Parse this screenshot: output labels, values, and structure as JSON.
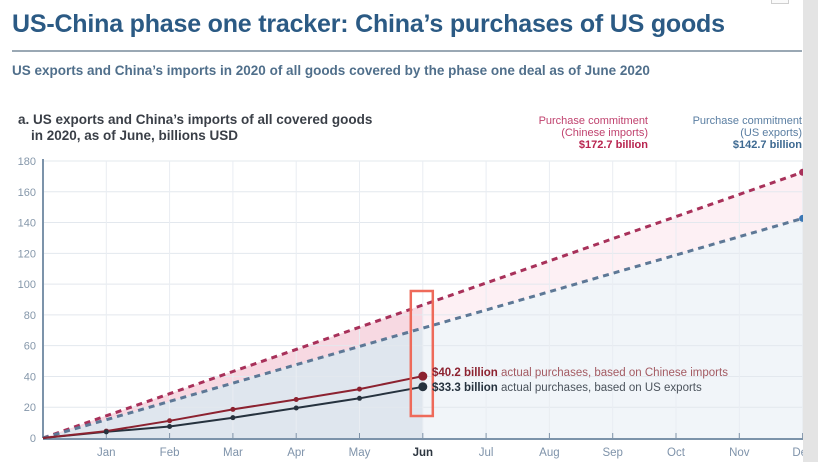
{
  "header": {
    "title": "US-China phase one tracker: China’s purchases of US goods",
    "subtitle": "US exports and China’s imports in 2020 of all goods covered by the phase one deal as of June 2020"
  },
  "panel": {
    "title_line1": "a. US exports and China’s imports of all covered goods",
    "title_line2": "in 2020, as of June, billions USD"
  },
  "legend": {
    "chinese": {
      "label_line1": "Purchase commitment",
      "label_line2": "(Chinese imports)",
      "value": "$172.7 billion"
    },
    "us": {
      "label_line1": "Purchase commitment",
      "label_line2": "(US exports)",
      "value": "$142.7 billion"
    }
  },
  "annotations": {
    "chinese": {
      "amount": "$40.2 billion",
      "text": " actual purchases, based on Chinese imports"
    },
    "us": {
      "amount": "$33.3 billion",
      "text": " actual purchases, based on US exports"
    }
  },
  "colors": {
    "title": "#2b5a84",
    "chinese": "#8c2230",
    "chinese_commitment": "#a8315a",
    "us": "#26323e",
    "us_commitment": "#5d7896",
    "highlight": "#ee6a5a"
  },
  "chart_data": {
    "type": "line",
    "title": "a. US exports and China’s imports of all covered goods in 2020, as of June, billions USD",
    "xlabel": "",
    "ylabel": "billions USD",
    "categories": [
      "Jan",
      "Feb",
      "Mar",
      "Apr",
      "May",
      "Jun",
      "Jul",
      "Aug",
      "Sep",
      "Oct",
      "Nov",
      "Dec"
    ],
    "yticks": [
      0,
      20,
      40,
      60,
      80,
      100,
      120,
      140,
      160,
      180
    ],
    "ylim": [
      0,
      180
    ],
    "grid": true,
    "highlight_category": "Jun",
    "series": [
      {
        "name": "Purchase commitment (Chinese imports)",
        "style": "dashed",
        "values": [
          14.4,
          28.8,
          43.2,
          57.6,
          72.0,
          86.4,
          100.7,
          115.1,
          129.5,
          143.9,
          158.3,
          172.7
        ]
      },
      {
        "name": "Purchase commitment (US exports)",
        "style": "dashed",
        "values": [
          11.9,
          23.8,
          35.7,
          47.6,
          59.5,
          71.4,
          83.2,
          95.1,
          107.0,
          118.9,
          130.8,
          142.7
        ]
      },
      {
        "name": "Actual purchases, based on Chinese imports",
        "style": "solid",
        "values": [
          4.5,
          11.2,
          18.6,
          25.0,
          31.8,
          40.2,
          null,
          null,
          null,
          null,
          null,
          null
        ]
      },
      {
        "name": "Actual purchases, based on US exports",
        "style": "solid",
        "values": [
          4.0,
          7.5,
          13.2,
          19.5,
          25.8,
          33.3,
          null,
          null,
          null,
          null,
          null,
          null
        ]
      }
    ],
    "legend": [
      "Purchase commitment (Chinese imports) $172.7 billion",
      "Purchase commitment (US exports) $142.7 billion"
    ],
    "annotations": [
      "$40.2 billion actual purchases, based on Chinese imports",
      "$33.3 billion actual purchases, based on US exports"
    ]
  }
}
